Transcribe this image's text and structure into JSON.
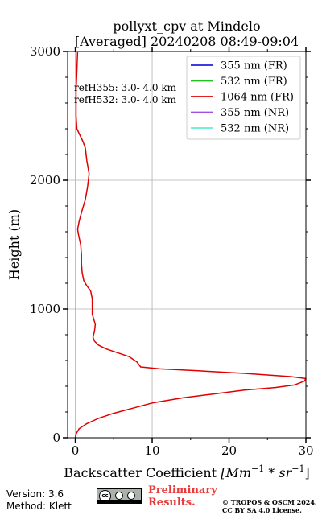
{
  "chart_data": {
    "type": "line",
    "title": [
      "pollyxt_cpv at Mindelo",
      "[Averaged] 20240208 08:49-09:04"
    ],
    "xlabel_main": "Backscatter Coefficient ",
    "xlabel_unit": "[Mm",
    "xlabel_exp1": "−1",
    "xlabel_mid": " * sr",
    "xlabel_exp2": "−1",
    "xlabel_end": "]",
    "ylabel": "Height (m)",
    "xlim": [
      -1,
      30
    ],
    "ylim": [
      0,
      3000
    ],
    "xticks": [
      0,
      10,
      20,
      30
    ],
    "xtick_labels": [
      "0",
      "10",
      "20",
      "30"
    ],
    "yticks": [
      0,
      1000,
      2000,
      3000
    ],
    "ytick_labels": [
      "0",
      "1000",
      "2000",
      "3000"
    ],
    "grid": true,
    "legend_position": "top-right",
    "legend": [
      {
        "name": "355 nm (FR)",
        "color": "#1f1fe0"
      },
      {
        "name": "532 nm (FR)",
        "color": "#1fc01f"
      },
      {
        "name": "1064 nm (FR)",
        "color": "#e00000"
      },
      {
        "name": "355 nm (NR)",
        "color": "#a050e0"
      },
      {
        "name": "532 nm (NR)",
        "color": "#60f0d0"
      }
    ],
    "annotations": [
      "refH355:  3.0- 4.0 km",
      "refH532:  3.0- 4.0 km"
    ],
    "series": [
      {
        "name": "1064 nm (FR)",
        "color": "#e00000",
        "points": [
          [
            0,
            0
          ],
          [
            0.1,
            30
          ],
          [
            0.5,
            70
          ],
          [
            1.5,
            110
          ],
          [
            3,
            150
          ],
          [
            5,
            190
          ],
          [
            7.5,
            230
          ],
          [
            10,
            270
          ],
          [
            14,
            310
          ],
          [
            18,
            340
          ],
          [
            22,
            370
          ],
          [
            26,
            390
          ],
          [
            28.5,
            410
          ],
          [
            29.8,
            440
          ],
          [
            30,
            460
          ],
          [
            28,
            475
          ],
          [
            22,
            500
          ],
          [
            16,
            520
          ],
          [
            11,
            535
          ],
          [
            8.5,
            550
          ],
          [
            8,
            590
          ],
          [
            7,
            630
          ],
          [
            5.5,
            660
          ],
          [
            4,
            690
          ],
          [
            3,
            720
          ],
          [
            2.5,
            750
          ],
          [
            2.3,
            780
          ],
          [
            2.5,
            830
          ],
          [
            2.6,
            880
          ],
          [
            2.4,
            920
          ],
          [
            2.2,
            960
          ],
          [
            2.2,
            1020
          ],
          [
            2.2,
            1080
          ],
          [
            2.0,
            1140
          ],
          [
            1.5,
            1180
          ],
          [
            1.1,
            1220
          ],
          [
            0.9,
            1280
          ],
          [
            0.8,
            1350
          ],
          [
            0.8,
            1420
          ],
          [
            0.7,
            1500
          ],
          [
            0.4,
            1580
          ],
          [
            0.3,
            1620
          ],
          [
            0.5,
            1680
          ],
          [
            0.8,
            1750
          ],
          [
            1.3,
            1850
          ],
          [
            1.6,
            1950
          ],
          [
            1.8,
            2050
          ],
          [
            1.5,
            2150
          ],
          [
            1.3,
            2250
          ],
          [
            1.0,
            2300
          ],
          [
            0.6,
            2350
          ],
          [
            0.2,
            2400
          ],
          [
            0.1,
            2500
          ],
          [
            0.1,
            2700
          ],
          [
            0.2,
            2850
          ],
          [
            0.3,
            3000
          ]
        ]
      }
    ]
  },
  "footer": {
    "version": "Version: 3.6",
    "method": "Method: Klett",
    "preliminary_line1": "Preliminary",
    "preliminary_line2": "Results.",
    "copyright_line1": "© TROPOS & OSCM 2024.",
    "copyright_line2": "CC BY SA 4.0 License.",
    "cc_badge_text": "cc"
  }
}
